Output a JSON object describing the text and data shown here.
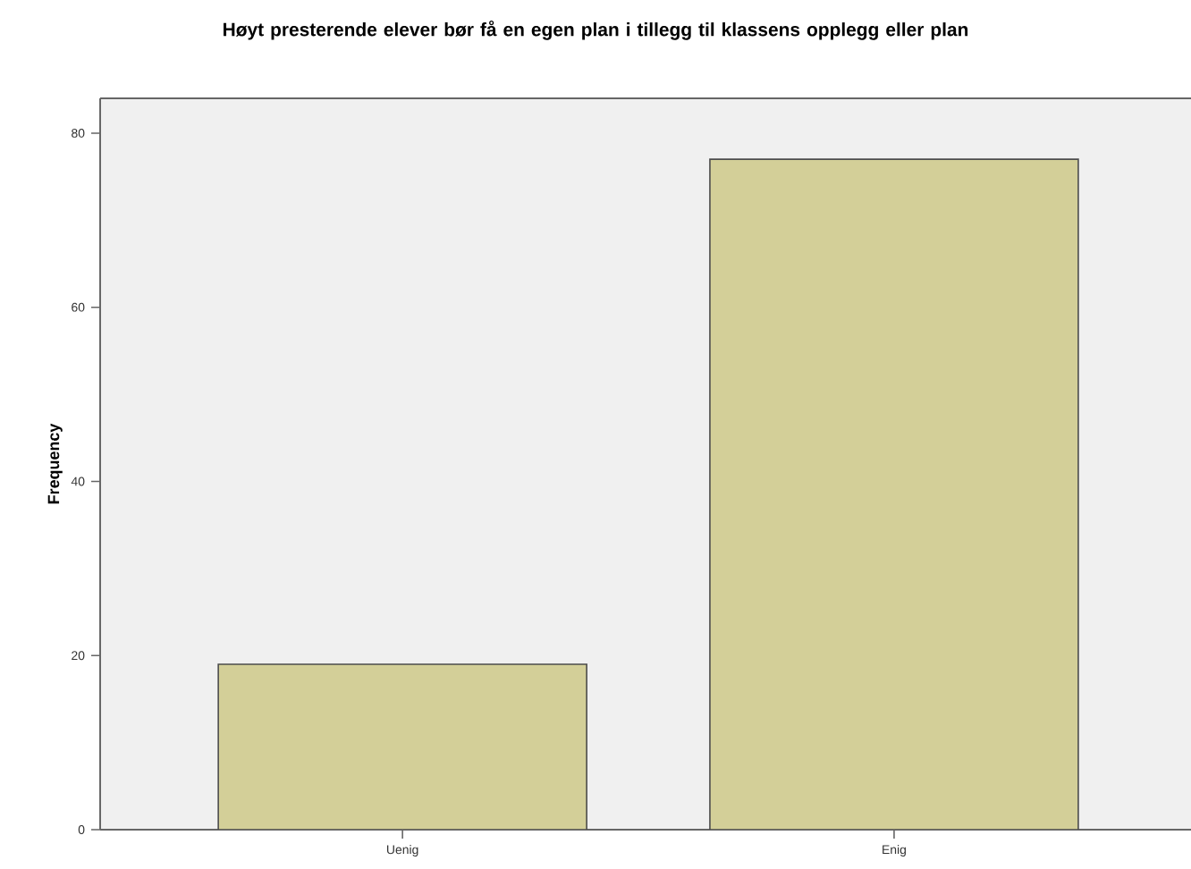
{
  "chart_data": {
    "type": "bar",
    "title": "Høyt presterende elever bør få en egen plan i tillegg til klassens opplegg eller plan",
    "ylabel": "Frequency",
    "categories": [
      "Uenig",
      "Enig"
    ],
    "values": [
      19,
      77
    ],
    "color": "#d3cf98",
    "ylim": [
      0,
      84
    ],
    "yticks": [
      0,
      20,
      40,
      60,
      80
    ],
    "grid": false
  }
}
